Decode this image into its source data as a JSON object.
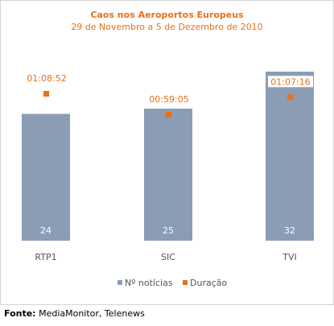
{
  "chart_data": {
    "type": "bar",
    "title": "Caos nos Aeroportos Europeus",
    "subtitle": "29 de Novembro a 5 de Dezembro de 2010",
    "categories": [
      "RTP1",
      "SIC",
      "TVI"
    ],
    "series": [
      {
        "name": "Nº notícias",
        "values": [
          24,
          25,
          32
        ],
        "color": "#8a9db5",
        "kind": "bar"
      },
      {
        "name": "Duração",
        "values": [
          "01:08:52",
          "00:59:05",
          "01:07:16"
        ],
        "color": "#e8701a",
        "kind": "point"
      }
    ],
    "duration_seconds": [
      4132,
      3545,
      4036
    ],
    "ylim_bars": [
      0,
      32
    ],
    "legend_position": "bottom"
  },
  "source": {
    "label": "Fonte:",
    "text": " MediaMonitor, Telenews"
  }
}
